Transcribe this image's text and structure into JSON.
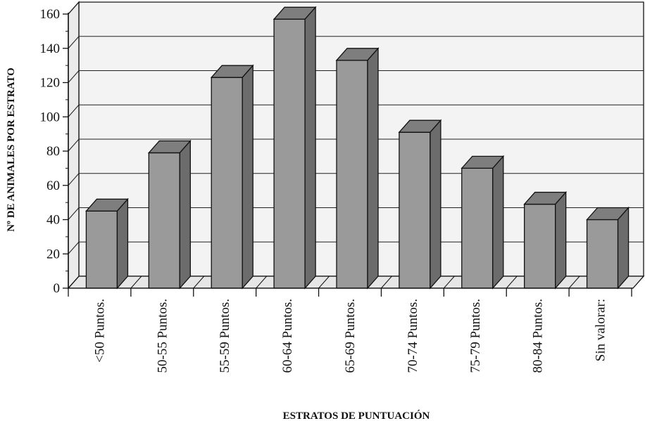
{
  "chart_data": {
    "type": "bar",
    "style": "3d-column",
    "title": "",
    "xlabel": "ESTRATOS DE PUNTUACIÓN",
    "ylabel": "Nº DE ANIMALES POR ESTRATO",
    "categories": [
      "<50 Puntos.",
      "50-55 Puntos.",
      "55-59 Puntos.",
      "60-64 Puntos.",
      "65-69 Puntos.",
      "70-74 Puntos.",
      "75-79 Puntos.",
      "80-84 Puntos.",
      "Sin valorar:"
    ],
    "values": [
      45,
      79,
      123,
      157,
      133,
      91,
      70,
      49,
      40
    ],
    "ylim": [
      0,
      160
    ],
    "yticks": [
      "0",
      "20",
      "40",
      "60",
      "80",
      "100",
      "120",
      "140",
      "160"
    ],
    "grid": true,
    "legend": "none",
    "colors": {
      "bar_front": "#9a9a9a",
      "bar_top": "#7e7e7e",
      "bar_side": "#6c6c6c",
      "plot_back": "#f3f3f3",
      "plot_floor": "#e6e6e6"
    }
  }
}
